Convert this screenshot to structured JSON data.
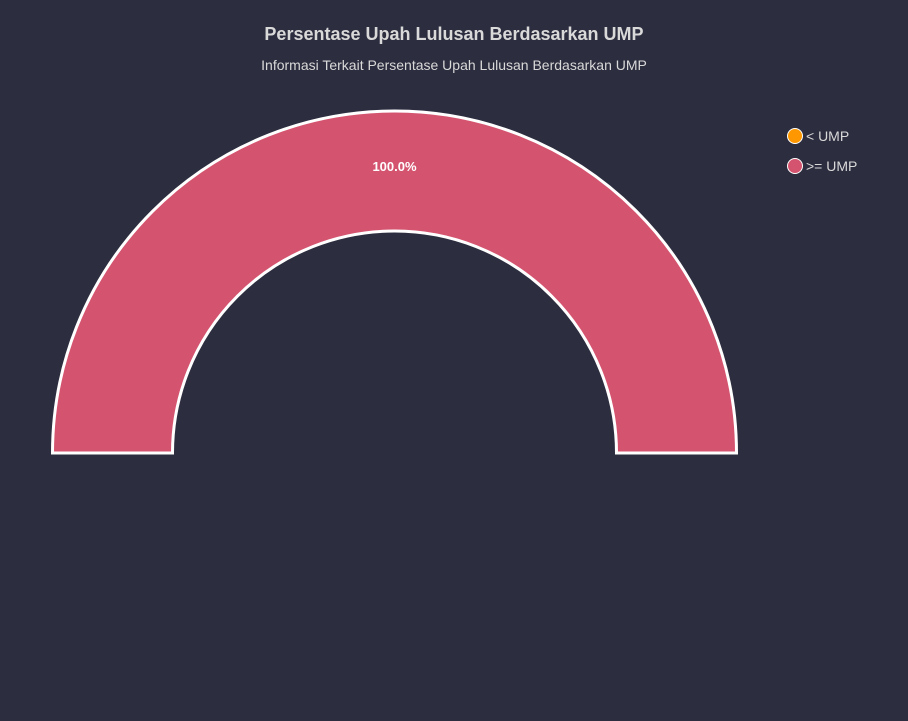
{
  "chart_data": {
    "type": "pie",
    "variant": "semi-donut",
    "title": "Persentase Upah Lulusan Berdasarkan UMP",
    "subtitle": "Informasi Terkait Persentase Upah Lulusan Berdasarkan UMP",
    "legend_position": "top-right",
    "series": [
      {
        "name": "< UMP",
        "value": 0,
        "color": "#ff9800",
        "label": ""
      },
      {
        "name": ">= UMP",
        "value": 100.0,
        "color": "#d4546f",
        "label": "100.0%"
      }
    ]
  }
}
